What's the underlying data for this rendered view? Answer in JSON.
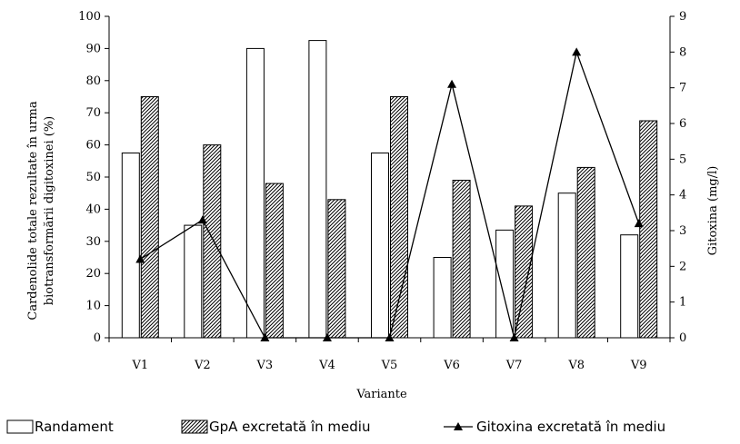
{
  "chart_data": {
    "type": "bar",
    "categories": [
      "V1",
      "V2",
      "V3",
      "V4",
      "V5",
      "V6",
      "V7",
      "V8",
      "V9"
    ],
    "series": [
      {
        "name": "Randament",
        "kind": "bar",
        "axis": "left",
        "fill": "white",
        "values": [
          57.5,
          35,
          90,
          92.5,
          57.5,
          25,
          33.5,
          45,
          32
        ]
      },
      {
        "name": "GpA excretată în mediu",
        "kind": "bar",
        "axis": "left",
        "fill": "hatched",
        "values": [
          75,
          60,
          48,
          43,
          75,
          49,
          41,
          53,
          67.5
        ]
      },
      {
        "name": "Gitoxina excretată în mediu",
        "kind": "line",
        "axis": "right",
        "marker": "triangle",
        "values": [
          2.2,
          3.3,
          0,
          0,
          0,
          7.1,
          0,
          8,
          3.2
        ]
      }
    ],
    "xlabel": "Variante",
    "ylabel": "Cardenolide totale rezultate în urma biotransformării digitoxinei (%)",
    "ylabel_lines": [
      "Cardenolide totale rezultate în urma",
      "biotransformării digitoxinei (%)"
    ],
    "y2label": "Gitoxina (mg/l)",
    "ylim": [
      0,
      100
    ],
    "y2lim": [
      0,
      9
    ],
    "yticks": [
      "0",
      "10",
      "20",
      "30",
      "40",
      "50",
      "60",
      "70",
      "80",
      "90",
      "100"
    ],
    "y2ticks": [
      "0",
      "1",
      "2",
      "3",
      "4",
      "5",
      "6",
      "7",
      "8",
      "9"
    ],
    "legend_position": "bottom",
    "grid": false,
    "colors": {
      "line": "#000000",
      "bar_stroke": "#000000",
      "bar_fill": "#ffffff"
    }
  }
}
